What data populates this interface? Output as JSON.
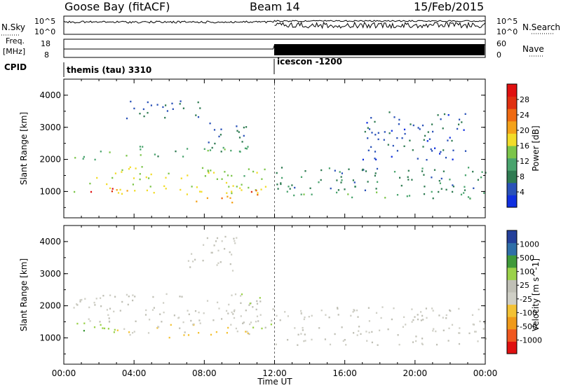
{
  "header": {
    "station": "Goose Bay (fitACF)",
    "beam": "Beam 14",
    "date": "15/Feb/2015"
  },
  "strip_labels": {
    "nsky": "N.Sky",
    "nsearch": "N.Search",
    "nsky_ticks": [
      "10^5",
      "10^0"
    ],
    "nsearch_ticks": [
      "10^5",
      "10^0"
    ],
    "freq": "Freq.",
    "freq_unit": "[MHz]",
    "freq_ticks": [
      "18",
      "8"
    ],
    "nave": "Nave",
    "nave_ticks": [
      "60",
      "0"
    ],
    "cpid": "CPID",
    "mode_1": "themis (tau) 3310",
    "mode_2": "icescon -1200"
  },
  "colors": {
    "power_scale": [
      "#1030e0",
      "#2a52b8",
      "#2f7b52",
      "#4aa46e",
      "#7cc54a",
      "#f2dc2a",
      "#f4a21a",
      "#ef6a12",
      "#e03010",
      "#e01010"
    ],
    "velocity_scale": [
      "#e01010",
      "#f05820",
      "#f09a1a",
      "#f3c235",
      "#cfcfc6",
      "#c0c0b6",
      "#9bd24a",
      "#3f9a3a",
      "#2f6fa8",
      "#24409a"
    ],
    "mode_divider": "#000000"
  },
  "chart_data": [
    {
      "type": "heatmap",
      "panel": "power",
      "xlabel": "",
      "ylabel": "Slant Range [km]",
      "x_ticks": [
        "00:00",
        "04:00",
        "08:00",
        "12:00",
        "16:00",
        "20:00",
        "00:00"
      ],
      "y_ticks": [
        "1000",
        "2000",
        "3000",
        "4000"
      ],
      "xlim": [
        0,
        24
      ],
      "ylim": [
        180,
        4500
      ],
      "colorbar": {
        "label": "Power [dB]",
        "ticks": [
          "28",
          "24",
          "20",
          "16",
          "12",
          "8",
          "4"
        ],
        "range": [
          0,
          30
        ]
      },
      "regions": [
        {
          "t": [
            0.5,
            11.5
          ],
          "r": [
            900,
            1300
          ],
          "value": 16
        },
        {
          "t": [
            1.5,
            3.0
          ],
          "r": [
            950,
            1150
          ],
          "value": 26
        },
        {
          "t": [
            7.5,
            10.5
          ],
          "r": [
            650,
            900
          ],
          "value": 20
        },
        {
          "t": [
            10.5,
            11.8
          ],
          "r": [
            850,
            1150
          ],
          "value": 24
        },
        {
          "t": [
            0.5,
            11.5
          ],
          "r": [
            1400,
            1800
          ],
          "value": 14
        },
        {
          "t": [
            0.5,
            3.0
          ],
          "r": [
            2000,
            2300
          ],
          "value": 12
        },
        {
          "t": [
            3.5,
            10.5
          ],
          "r": [
            2100,
            2500
          ],
          "value": 10
        },
        {
          "t": [
            12.0,
            24.0
          ],
          "r": [
            1000,
            1800
          ],
          "value": 8
        },
        {
          "t": [
            12.0,
            24.0
          ],
          "r": [
            800,
            1000
          ],
          "value": 10
        },
        {
          "t": [
            8.0,
            10.5
          ],
          "r": [
            2500,
            3200
          ],
          "value": 6
        },
        {
          "t": [
            3.5,
            8.0
          ],
          "r": [
            3300,
            3900
          ],
          "value": 6
        },
        {
          "t": [
            17.0,
            23.0
          ],
          "r": [
            2000,
            3500
          ],
          "value": 5
        }
      ]
    },
    {
      "type": "heatmap",
      "panel": "velocity",
      "xlabel": "Time UT",
      "ylabel": "Slant Range [km]",
      "x_ticks": [
        "00:00",
        "04:00",
        "08:00",
        "12:00",
        "16:00",
        "20:00",
        "00:00"
      ],
      "y_ticks": [
        "1000",
        "2000",
        "3000",
        "4000"
      ],
      "xlim": [
        0,
        24
      ],
      "ylim": [
        180,
        4500
      ],
      "colorbar": {
        "label": "Velocity [m s^-1]",
        "ticks": [
          "1000",
          "500",
          "100",
          "25",
          "-25",
          "-100",
          "-500",
          "-1000"
        ],
        "range": [
          -1000,
          1000
        ]
      },
      "regions": [
        {
          "t": [
            0.5,
            3.5
          ],
          "r": [
            1100,
            1500
          ],
          "value": 300
        },
        {
          "t": [
            3.0,
            11.0
          ],
          "r": [
            1000,
            1500
          ],
          "value": -150
        },
        {
          "t": [
            0.5,
            11.5
          ],
          "r": [
            1500,
            2400
          ],
          "value": 0
        },
        {
          "t": [
            12.0,
            24.0
          ],
          "r": [
            800,
            2000
          ],
          "value": 0
        },
        {
          "t": [
            10.0,
            12.0
          ],
          "r": [
            1300,
            2400
          ],
          "value": 120
        },
        {
          "t": [
            7.0,
            10.0
          ],
          "r": [
            3100,
            4200
          ],
          "value": 0
        }
      ]
    }
  ],
  "time_axis": {
    "label": "Time UT"
  }
}
